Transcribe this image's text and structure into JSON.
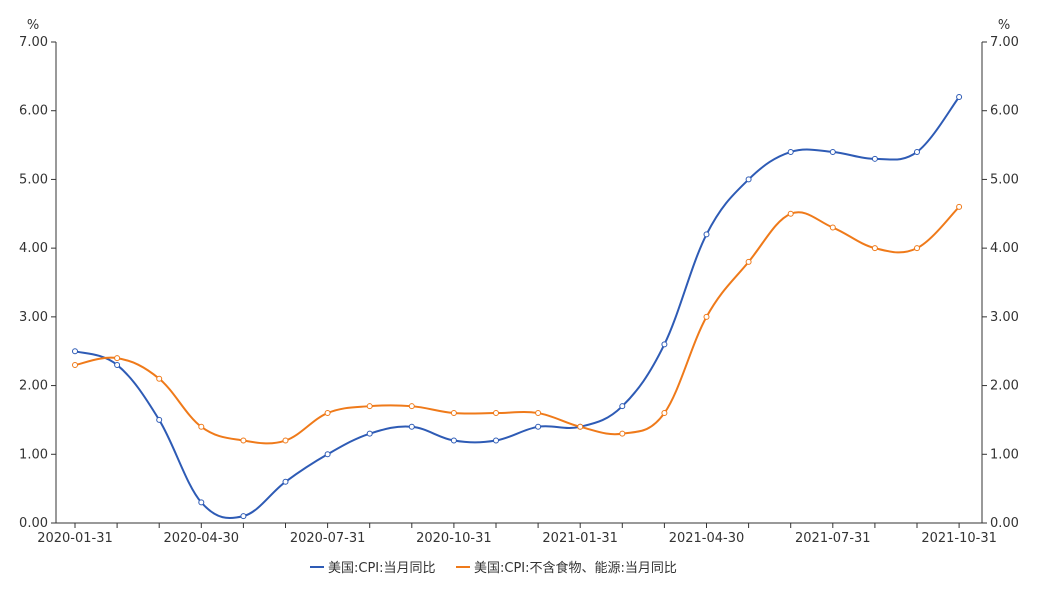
{
  "chart_data": {
    "type": "line",
    "x": [
      "2020-01-31",
      "2020-02-29",
      "2020-03-31",
      "2020-04-30",
      "2020-05-31",
      "2020-06-30",
      "2020-07-31",
      "2020-08-31",
      "2020-09-30",
      "2020-10-31",
      "2020-11-30",
      "2020-12-31",
      "2021-01-31",
      "2021-02-28",
      "2021-03-31",
      "2021-04-30",
      "2021-05-31",
      "2021-06-30",
      "2021-07-31",
      "2021-08-31",
      "2021-09-30",
      "2021-10-31"
    ],
    "x_tick_labels": [
      "2020-01-31",
      "2020-04-30",
      "2020-07-31",
      "2020-10-31",
      "2021-01-31",
      "2021-04-30",
      "2021-07-31",
      "2021-10-31"
    ],
    "series": [
      {
        "name": "美国:CPI:当月同比",
        "color": "#2e5bb5",
        "values": [
          2.5,
          2.3,
          1.5,
          0.3,
          0.1,
          0.6,
          1.0,
          1.3,
          1.4,
          1.2,
          1.2,
          1.4,
          1.4,
          1.7,
          2.6,
          4.2,
          5.0,
          5.4,
          5.4,
          5.3,
          5.4,
          6.2
        ]
      },
      {
        "name": "美国:CPI:不含食物、能源:当月同比",
        "color": "#ef7a1a",
        "values": [
          2.3,
          2.4,
          2.1,
          1.4,
          1.2,
          1.2,
          1.6,
          1.7,
          1.7,
          1.6,
          1.6,
          1.6,
          1.4,
          1.3,
          1.6,
          3.0,
          3.8,
          4.5,
          4.3,
          4.0,
          4.0,
          4.6
        ]
      }
    ],
    "y_left_unit": "%",
    "y_right_unit": "%",
    "ylim": [
      0,
      7
    ],
    "y_ticks": [
      "0.00",
      "1.00",
      "2.00",
      "3.00",
      "4.00",
      "5.00",
      "6.00",
      "7.00"
    ],
    "grid": false,
    "legend_position": "bottom-center"
  }
}
